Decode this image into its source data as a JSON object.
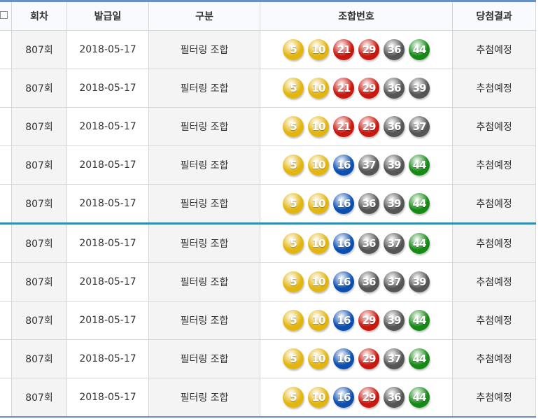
{
  "header": {
    "round": "회차",
    "issue_date": "발급일",
    "type": "구분",
    "numbers": "조합번호",
    "result": "당첨결과"
  },
  "ball_colors": {
    "1-10": "#e2b50f",
    "11-20": "#0d4fb0",
    "21-30": "#c9180f",
    "31-40": "#555555",
    "41-45": "#158a15"
  },
  "rows": [
    {
      "round": "807회",
      "date": "2018-05-17",
      "type": "필터링 조합",
      "numbers": [
        5,
        10,
        21,
        29,
        36,
        44
      ],
      "result": "추첨예정"
    },
    {
      "round": "807회",
      "date": "2018-05-17",
      "type": "필터링 조합",
      "numbers": [
        5,
        10,
        21,
        29,
        36,
        39
      ],
      "result": "추첨예정"
    },
    {
      "round": "807회",
      "date": "2018-05-17",
      "type": "필터링 조합",
      "numbers": [
        5,
        10,
        21,
        29,
        36,
        37
      ],
      "result": "추첨예정"
    },
    {
      "round": "807회",
      "date": "2018-05-17",
      "type": "필터링 조합",
      "numbers": [
        5,
        10,
        16,
        37,
        39,
        44
      ],
      "result": "추첨예정"
    },
    {
      "round": "807회",
      "date": "2018-05-17",
      "type": "필터링 조합",
      "numbers": [
        5,
        10,
        16,
        36,
        39,
        44
      ],
      "result": "추첨예정"
    },
    {
      "round": "807회",
      "date": "2018-05-17",
      "type": "필터링 조합",
      "numbers": [
        5,
        10,
        16,
        36,
        37,
        44
      ],
      "result": "추첨예정"
    },
    {
      "round": "807회",
      "date": "2018-05-17",
      "type": "필터링 조합",
      "numbers": [
        5,
        10,
        16,
        36,
        37,
        39
      ],
      "result": "추첨예정"
    },
    {
      "round": "807회",
      "date": "2018-05-17",
      "type": "필터링 조합",
      "numbers": [
        5,
        10,
        16,
        29,
        39,
        44
      ],
      "result": "추첨예정"
    },
    {
      "round": "807회",
      "date": "2018-05-17",
      "type": "필터링 조합",
      "numbers": [
        5,
        10,
        16,
        29,
        37,
        44
      ],
      "result": "추첨예정"
    },
    {
      "round": "807회",
      "date": "2018-05-17",
      "type": "필터링 조합",
      "numbers": [
        5,
        10,
        16,
        29,
        36,
        44
      ],
      "result": "추첨예정"
    }
  ]
}
